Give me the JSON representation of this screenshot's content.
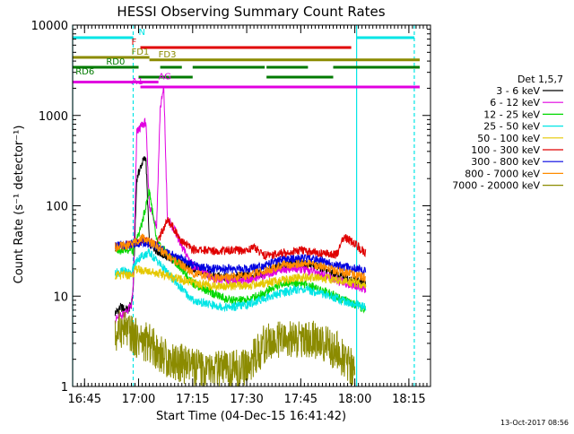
{
  "chart_data": {
    "type": "line",
    "title": "HESSI Observing Summary Count Rates",
    "xlabel": "Start Time (04-Dec-15 16:41:42)",
    "ylabel": "Count Rate (s⁻¹ detector⁻¹)",
    "yscale": "log",
    "ylim": [
      1,
      10000
    ],
    "xlim": [
      "16:41:42",
      "18:21:00"
    ],
    "y_ticks": [
      "1",
      "10",
      "100",
      "1000",
      "10000"
    ],
    "x_ticks": [
      "16:45",
      "17:00",
      "17:15",
      "17:30",
      "17:45",
      "18:00",
      "18:15"
    ],
    "legend_title": "Det 1,5,7",
    "legend_position": "right",
    "timestamp": "13-Oct-2017 08:56",
    "vertical_lines": [
      {
        "time": "16:41:42",
        "style": "solid",
        "color": "#00e5e5"
      },
      {
        "time": "16:58:30",
        "style": "dashed",
        "color": "#00e5e5"
      },
      {
        "time": "18:00:30",
        "style": "solid",
        "color": "#00e5e5"
      },
      {
        "time": "18:16:30",
        "style": "dashed",
        "color": "#00e5e5"
      }
    ],
    "flags": [
      {
        "label": "N",
        "label_time": "17:00:00",
        "color": "#00e5e5",
        "level": 1,
        "segments": [
          [
            "16:41:42",
            "16:58:30"
          ],
          [
            "18:00:30",
            "18:16:30"
          ]
        ]
      },
      {
        "label": "F",
        "label_time": "16:58:00",
        "color": "#e00000",
        "level": 2,
        "segments": [
          [
            "17:00:30",
            "17:59:00"
          ]
        ]
      },
      {
        "label": "FD1",
        "label_time": "16:58:00",
        "color": "#8b8b00",
        "level": 3,
        "segments": [
          [
            "16:41:42",
            "17:03:00"
          ]
        ]
      },
      {
        "label": "FD3",
        "label_time": "17:05:30",
        "color": "#8b8b00",
        "level": 3.25,
        "segments": [
          [
            "17:03:00",
            "18:18:00"
          ]
        ]
      },
      {
        "label": "RD0",
        "label_time": "16:51:00",
        "color": "#007a00",
        "level": 4,
        "segments": [
          [
            "16:41:42",
            "17:00:00"
          ],
          [
            "17:06:00",
            "17:12:00"
          ],
          [
            "17:15:00",
            "17:35:00"
          ],
          [
            "17:35:30",
            "17:47:00"
          ],
          [
            "17:54:00",
            "18:18:00"
          ]
        ]
      },
      {
        "label": "RD6",
        "label_time": "16:42:30",
        "color": "#007a00",
        "level": 5,
        "segments": [
          [
            "17:00:00",
            "17:15:00"
          ],
          [
            "17:35:30",
            "17:54:00"
          ]
        ]
      },
      {
        "label": "AG",
        "label_time": "17:05:30",
        "color": "#e000e0",
        "level": 5.5,
        "segments": [
          [
            "16:41:42",
            "17:05:30"
          ]
        ]
      },
      {
        "label": "A1",
        "label_time": "16:58:00",
        "color": "#e000e0",
        "level": 6,
        "segments": [
          [
            "17:00:30",
            "18:18:00"
          ]
        ]
      }
    ],
    "series": [
      {
        "name": "3 - 6 keV",
        "color": "#000000",
        "x": [
          "16:53:30",
          "16:55",
          "16:57",
          "16:58",
          "16:58:30",
          "16:59:30",
          "17:01",
          "17:02",
          "17:03",
          "17:06",
          "17:09",
          "17:15",
          "17:20",
          "17:25",
          "17:30",
          "17:35",
          "17:40",
          "17:45",
          "17:50",
          "17:55",
          "18:00",
          "18:03"
        ],
        "y": [
          6.5,
          7.5,
          7,
          8,
          12,
          200,
          300,
          350,
          38,
          30,
          26,
          20,
          17,
          16,
          17,
          18,
          22,
          23,
          21,
          17,
          15,
          14
        ]
      },
      {
        "name": "6 - 12 keV",
        "color": "#e000e0",
        "x": [
          "16:53:30",
          "16:55",
          "16:57",
          "16:58",
          "16:58:30",
          "16:59:30",
          "17:01",
          "17:02",
          "17:03",
          "17:05",
          "17:06",
          "17:07",
          "17:08",
          "17:10",
          "17:12",
          "17:15",
          "17:20",
          "17:25",
          "17:30",
          "17:35",
          "17:40",
          "17:45",
          "17:50",
          "17:55",
          "18:00",
          "18:03"
        ],
        "y": [
          5.5,
          6,
          7,
          8,
          12,
          650,
          780,
          850,
          100,
          60,
          1200,
          2000,
          70,
          55,
          35,
          22,
          16,
          15,
          15,
          17,
          20,
          20,
          18,
          15,
          13,
          12
        ]
      },
      {
        "name": "12 - 25 keV",
        "color": "#00d800",
        "x": [
          "16:53:30",
          "16:56",
          "16:58",
          "16:58:30",
          "16:59:30",
          "17:01",
          "17:03",
          "17:05",
          "17:06",
          "17:08",
          "17:12",
          "17:15",
          "17:20",
          "17:25",
          "17:30",
          "17:35",
          "17:40",
          "17:45",
          "17:50",
          "17:55",
          "18:00",
          "18:03"
        ],
        "y": [
          33,
          33,
          33,
          30,
          42,
          65,
          150,
          40,
          35,
          30,
          20,
          14,
          11,
          9,
          9,
          11,
          14,
          14,
          12,
          10,
          8,
          7
        ]
      },
      {
        "name": "25 - 50 keV",
        "color": "#00e5e5",
        "x": [
          "16:53:30",
          "16:56",
          "16:58",
          "16:58:30",
          "16:59:30",
          "17:01",
          "17:03",
          "17:05",
          "17:08",
          "17:12",
          "17:15",
          "17:20",
          "17:25",
          "17:30",
          "17:35",
          "17:40",
          "17:45",
          "17:50",
          "17:55",
          "18:00",
          "18:03"
        ],
        "y": [
          18,
          19,
          18,
          20,
          25,
          28,
          30,
          25,
          18,
          12,
          9,
          8,
          7.5,
          8,
          9.5,
          11,
          12,
          11,
          9.5,
          8,
          7.5
        ]
      },
      {
        "name": "50 - 100 keV",
        "color": "#e5c800",
        "x": [
          "16:53:30",
          "16:56",
          "16:58",
          "16:58:30",
          "16:59:30",
          "17:01",
          "17:03",
          "17:05",
          "17:08",
          "17:12",
          "17:15",
          "17:20",
          "17:25",
          "17:30",
          "17:35",
          "17:40",
          "17:45",
          "17:50",
          "17:55",
          "18:00",
          "18:03"
        ],
        "y": [
          17,
          17,
          17,
          18,
          20,
          19,
          19,
          18,
          17,
          15,
          14,
          13,
          13,
          13,
          14,
          15,
          16,
          16,
          15,
          14,
          13
        ]
      },
      {
        "name": "100 - 300 keV",
        "color": "#e00000",
        "x": [
          "16:53:30",
          "16:56",
          "16:58",
          "16:59",
          "17:01",
          "17:03",
          "17:05",
          "17:08",
          "17:10",
          "17:12",
          "17:15",
          "17:20",
          "17:25",
          "17:30",
          "17:32",
          "17:35",
          "17:40",
          "17:45",
          "17:50",
          "17:55",
          "17:57",
          "18:00",
          "18:03"
        ],
        "y": [
          35,
          36,
          37,
          38,
          42,
          40,
          38,
          70,
          55,
          40,
          33,
          32,
          32,
          32,
          35,
          28,
          30,
          32,
          30,
          29,
          45,
          38,
          30
        ]
      },
      {
        "name": "300 - 800 keV",
        "color": "#0000e0",
        "x": [
          "16:53:30",
          "16:56",
          "16:58",
          "16:59",
          "17:01",
          "17:03",
          "17:05",
          "17:08",
          "17:12",
          "17:15",
          "17:20",
          "17:25",
          "17:30",
          "17:35",
          "17:40",
          "17:45",
          "17:50",
          "17:55",
          "18:00",
          "18:03"
        ],
        "y": [
          36,
          37,
          38,
          38,
          40,
          38,
          36,
          30,
          26,
          22,
          20,
          20,
          20,
          22,
          25,
          26,
          25,
          22,
          20,
          19
        ]
      },
      {
        "name": "800 - 7000 keV",
        "color": "#ff8c00",
        "x": [
          "16:53:30",
          "16:56",
          "16:58",
          "16:59",
          "17:01",
          "17:03",
          "17:05",
          "17:08",
          "17:12",
          "17:15",
          "17:20",
          "17:25",
          "17:30",
          "17:35",
          "17:40",
          "17:45",
          "17:50",
          "17:55",
          "18:00",
          "18:03"
        ],
        "y": [
          35,
          36,
          37,
          40,
          44,
          40,
          36,
          28,
          22,
          18,
          16,
          16,
          17,
          19,
          22,
          23,
          22,
          19,
          17,
          16
        ]
      },
      {
        "name": "7000 - 20000 keV",
        "color": "#8b8b00",
        "x": [
          "16:53:30",
          "16:55",
          "16:57",
          "16:59",
          "17:01",
          "17:03",
          "17:05",
          "17:08",
          "17:12",
          "17:15",
          "17:20",
          "17:25",
          "17:30",
          "17:35",
          "17:40",
          "17:45",
          "17:50",
          "17:55",
          "17:58",
          "18:00"
        ],
        "y": [
          3.5,
          4.5,
          4,
          3.5,
          3.2,
          3,
          2.5,
          2,
          1.8,
          1.6,
          1.5,
          1.5,
          1.6,
          3,
          3.2,
          3.3,
          3.2,
          2.5,
          1.8,
          1.5
        ]
      }
    ]
  }
}
